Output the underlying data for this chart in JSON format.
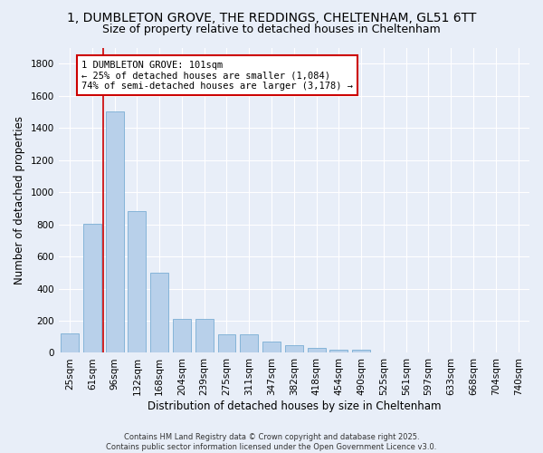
{
  "title": "1, DUMBLETON GROVE, THE REDDINGS, CHELTENHAM, GL51 6TT",
  "subtitle": "Size of property relative to detached houses in Cheltenham",
  "xlabel": "Distribution of detached houses by size in Cheltenham",
  "ylabel": "Number of detached properties",
  "categories": [
    "25sqm",
    "61sqm",
    "96sqm",
    "132sqm",
    "168sqm",
    "204sqm",
    "239sqm",
    "275sqm",
    "311sqm",
    "347sqm",
    "382sqm",
    "418sqm",
    "454sqm",
    "490sqm",
    "525sqm",
    "561sqm",
    "597sqm",
    "633sqm",
    "668sqm",
    "704sqm",
    "740sqm"
  ],
  "values": [
    120,
    805,
    1500,
    885,
    500,
    210,
    210,
    115,
    115,
    70,
    50,
    30,
    20,
    20,
    5,
    2,
    2,
    1,
    1,
    1,
    0
  ],
  "bar_color": "#b8d0ea",
  "bar_edge_color": "#7aadd4",
  "ylim": [
    0,
    1900
  ],
  "yticks": [
    0,
    200,
    400,
    600,
    800,
    1000,
    1200,
    1400,
    1600,
    1800
  ],
  "annotation_text": "1 DUMBLETON GROVE: 101sqm\n← 25% of detached houses are smaller (1,084)\n74% of semi-detached houses are larger (3,178) →",
  "annotation_box_color": "#ffffff",
  "annotation_box_edge_color": "#cc0000",
  "vline_color": "#cc0000",
  "vline_x": 1.5,
  "background_color": "#e8eef8",
  "grid_color": "#ffffff",
  "title_fontsize": 10,
  "subtitle_fontsize": 9,
  "axis_label_fontsize": 8.5,
  "tick_fontsize": 7.5,
  "ann_fontsize": 7.5,
  "footer_fontsize": 6.0,
  "footer": "Contains HM Land Registry data © Crown copyright and database right 2025.\nContains public sector information licensed under the Open Government Licence v3.0."
}
